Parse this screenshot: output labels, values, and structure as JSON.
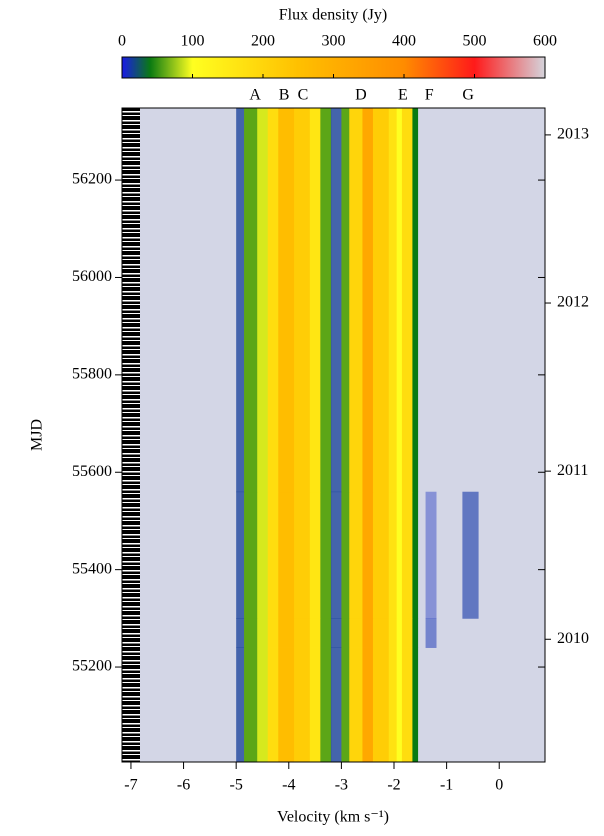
{
  "chart_data": {
    "type": "heatmap",
    "colorbar_title": "Flux density (Jy)",
    "clim": [
      0,
      600
    ],
    "cticks": [
      0,
      100,
      200,
      300,
      400,
      500,
      600
    ],
    "colormap": [
      [
        0,
        "#1a1ae8"
      ],
      [
        40,
        "#0a7a12"
      ],
      [
        100,
        "#ffff20"
      ],
      [
        250,
        "#ffc000"
      ],
      [
        400,
        "#ff8c00"
      ],
      [
        500,
        "#ff1a1a"
      ],
      [
        600,
        "#d4d4dc"
      ]
    ],
    "background_color": "#d3d6e6",
    "xlabel": "Velocity (km s⁻¹)",
    "ylabel": "MJD",
    "xlim": [
      -7.17,
      0.87
    ],
    "xticks": [
      -7,
      -6,
      -5,
      -4,
      -3,
      -2,
      -1,
      0
    ],
    "ylim": [
      55005,
      56348
    ],
    "yticks": [
      55200,
      55400,
      55600,
      55800,
      56000,
      56200
    ],
    "y2lim": [
      2009.27,
      2013.16
    ],
    "y2ticks": [
      2010,
      2011,
      2012,
      2013
    ],
    "x": [
      -7.17,
      -5.0,
      -4.85,
      -4.6,
      -4.4,
      -4.2,
      -3.9,
      -3.6,
      -3.4,
      -3.2,
      -3.0,
      -2.85,
      -2.6,
      -2.4,
      -2.1,
      -1.95,
      -1.85,
      -1.65,
      -1.55,
      -1.4,
      -1.2,
      -0.7,
      -0.4,
      0.87
    ],
    "y": [
      55005,
      55240,
      55300,
      55560,
      56348
    ],
    "values": [
      [
        null,
        15,
        60,
        90,
        180,
        260,
        220,
        160,
        60,
        15,
        60,
        200,
        320,
        220,
        170,
        100,
        180,
        40,
        null,
        null,
        null,
        null,
        null
      ],
      [
        null,
        15,
        60,
        90,
        180,
        260,
        220,
        160,
        60,
        15,
        60,
        200,
        320,
        220,
        170,
        100,
        180,
        40,
        null,
        10,
        null,
        null,
        null
      ],
      [
        null,
        15,
        60,
        90,
        180,
        260,
        220,
        160,
        60,
        15,
        60,
        200,
        320,
        220,
        170,
        100,
        180,
        40,
        null,
        8,
        null,
        12,
        null
      ],
      [
        null,
        15,
        60,
        90,
        180,
        260,
        220,
        160,
        60,
        15,
        60,
        200,
        320,
        220,
        170,
        100,
        180,
        40,
        null,
        null,
        null,
        null,
        null
      ]
    ],
    "annotations": [
      {
        "text": "A",
        "x": -4.64
      },
      {
        "text": "B",
        "x": -4.09
      },
      {
        "text": "C",
        "x": -3.73
      },
      {
        "text": "D",
        "x": -2.63
      },
      {
        "text": "E",
        "x": -1.83
      },
      {
        "text": "F",
        "x": -1.33
      },
      {
        "text": "G",
        "x": -0.59
      }
    ]
  }
}
